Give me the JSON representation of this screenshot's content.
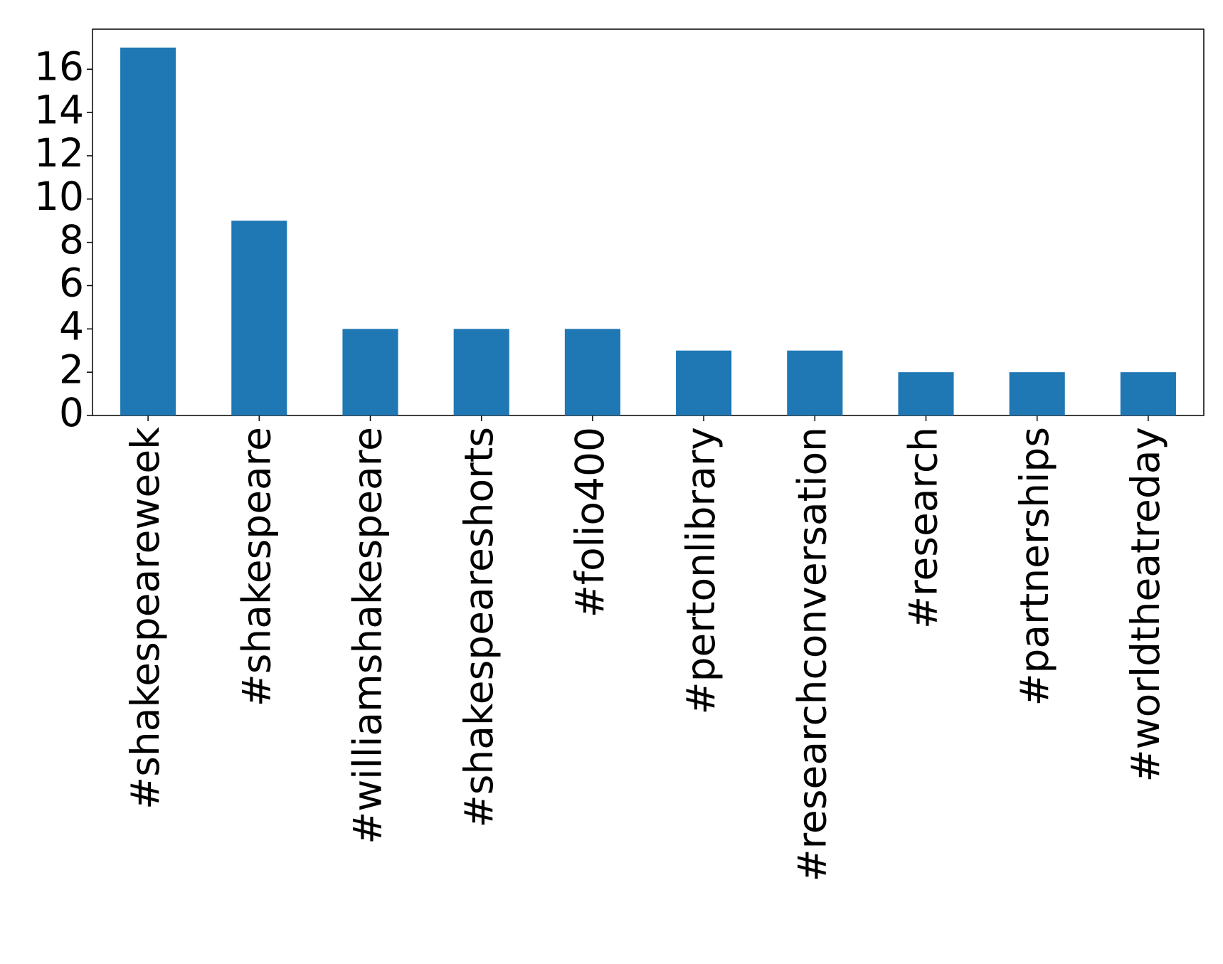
{
  "chart_data": {
    "type": "bar",
    "categories": [
      "#shakespeareweek",
      "#shakespeare",
      "#williamshakespeare",
      "#shakespeareshorts",
      "#folio400",
      "#pertonlibrary",
      "#researchconversation",
      "#research",
      "#partnerships",
      "#worldtheatreday"
    ],
    "values": [
      17,
      9,
      4,
      4,
      4,
      3,
      3,
      2,
      2,
      2
    ],
    "color": "#1f77b4",
    "ylim": [
      0,
      17.85
    ],
    "yticks": [
      0,
      2,
      4,
      6,
      8,
      10,
      12,
      14,
      16
    ],
    "grid": false
  }
}
